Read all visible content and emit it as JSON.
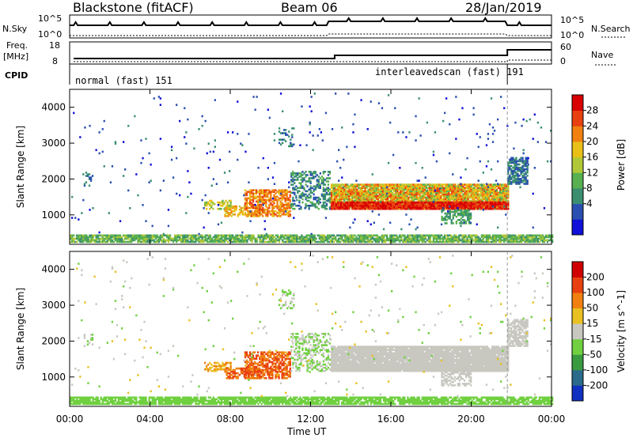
{
  "header": {
    "title_left": "Blackstone (fitACF)",
    "title_center": "Beam 06",
    "title_right": "28/Jan/2019"
  },
  "top_panel": {
    "nsky_label": "N.Sky",
    "nsearch_label": "N.Search",
    "ticks_left": [
      "10^5",
      "10^0"
    ],
    "ticks_right": [
      "10^5",
      "10^0"
    ],
    "freq_label_line1": "Freq.",
    "freq_label_line2": "[MHz]",
    "freq_ticks": [
      "18",
      "8"
    ],
    "nave_label": "Nave",
    "nave_ticks": [
      "60",
      "0"
    ],
    "cpid_label": "CPID",
    "cpid_segments": [
      "normal (fast) 151",
      "interleavedscan (fast) 191"
    ]
  },
  "chart_data": [
    {
      "type": "heatmap",
      "title": "",
      "ylabel": "Slant Range [km]",
      "ylim": [
        180,
        4500
      ],
      "yticks": [
        1000,
        2000,
        3000,
        4000
      ],
      "colorbar_label": "Power [dB]",
      "colorbar_ticks": [
        "28",
        "24",
        "20",
        "16",
        "12",
        "8",
        "4"
      ],
      "colors": [
        "#1010d8",
        "#2a4fb0",
        "#3b8f70",
        "#58b050",
        "#b0c838",
        "#e8c018",
        "#f08010",
        "#e84010",
        "#d80000"
      ]
    },
    {
      "type": "heatmap",
      "title": "",
      "ylabel": "Slant Range [km]",
      "ylim": [
        180,
        4500
      ],
      "yticks": [
        1000,
        2000,
        3000,
        4000
      ],
      "colorbar_label": "Velocity [m s^-1]",
      "colorbar_ticks": [
        "200",
        "100",
        "50",
        "15",
        "-15",
        "-50",
        "-100",
        "-200"
      ],
      "colors": [
        "#1030c0",
        "#2a6a8a",
        "#3a9a40",
        "#70d040",
        "#c8c8c0",
        "#e8c020",
        "#f08010",
        "#e84010",
        "#d00000"
      ]
    }
  ],
  "x_axis": {
    "label": "Time UT",
    "ticks": [
      "00:00",
      "04:00",
      "08:00",
      "12:00",
      "16:00",
      "20:00",
      "00:00"
    ],
    "range_hours": [
      0,
      24
    ]
  }
}
